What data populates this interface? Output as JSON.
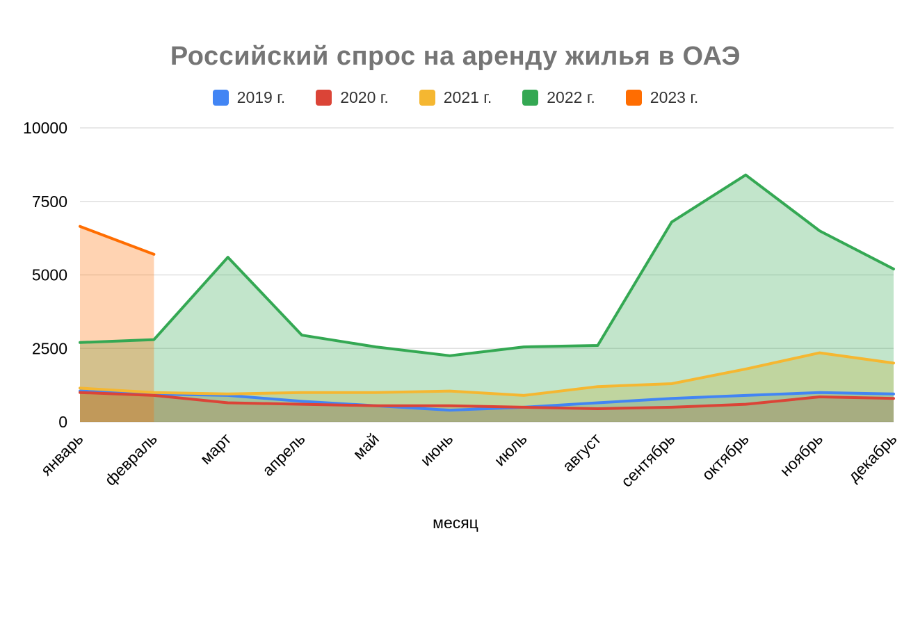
{
  "chart_data": {
    "type": "area",
    "title": "Российский спрос на аренду жилья в ОАЭ",
    "xlabel": "месяц",
    "ylabel": "",
    "x": [
      "январь",
      "февраль",
      "март",
      "апрель",
      "май",
      "июнь",
      "июль",
      "август",
      "сентябрь",
      "октябрь",
      "ноябрь",
      "декабрь"
    ],
    "series": [
      {
        "name": "2019 г.",
        "color": "#4285F4",
        "values": [
          1050,
          950,
          900,
          700,
          550,
          400,
          500,
          650,
          800,
          900,
          1000,
          950
        ]
      },
      {
        "name": "2020 г.",
        "color": "#DB4437",
        "values": [
          1000,
          900,
          650,
          600,
          550,
          550,
          500,
          450,
          500,
          600,
          850,
          800
        ]
      },
      {
        "name": "2021 г.",
        "color": "#F5B731",
        "values": [
          1150,
          1000,
          950,
          1000,
          1000,
          1050,
          900,
          1200,
          1300,
          1800,
          2350,
          2000
        ]
      },
      {
        "name": "2022 г.",
        "color": "#34A853",
        "values": [
          2700,
          2800,
          5600,
          2950,
          2550,
          2250,
          2550,
          2600,
          6800,
          8400,
          6500,
          5200
        ]
      },
      {
        "name": "2023 г.",
        "color": "#FF6D01",
        "values": [
          6650,
          5700,
          null,
          null,
          null,
          null,
          null,
          null,
          null,
          null,
          null,
          null
        ]
      }
    ],
    "ylim": [
      0,
      10000
    ],
    "yticks": [
      0,
      2500,
      5000,
      7500,
      10000
    ],
    "grid": true,
    "legend_position": "top",
    "fill_opacity": 0.3
  }
}
